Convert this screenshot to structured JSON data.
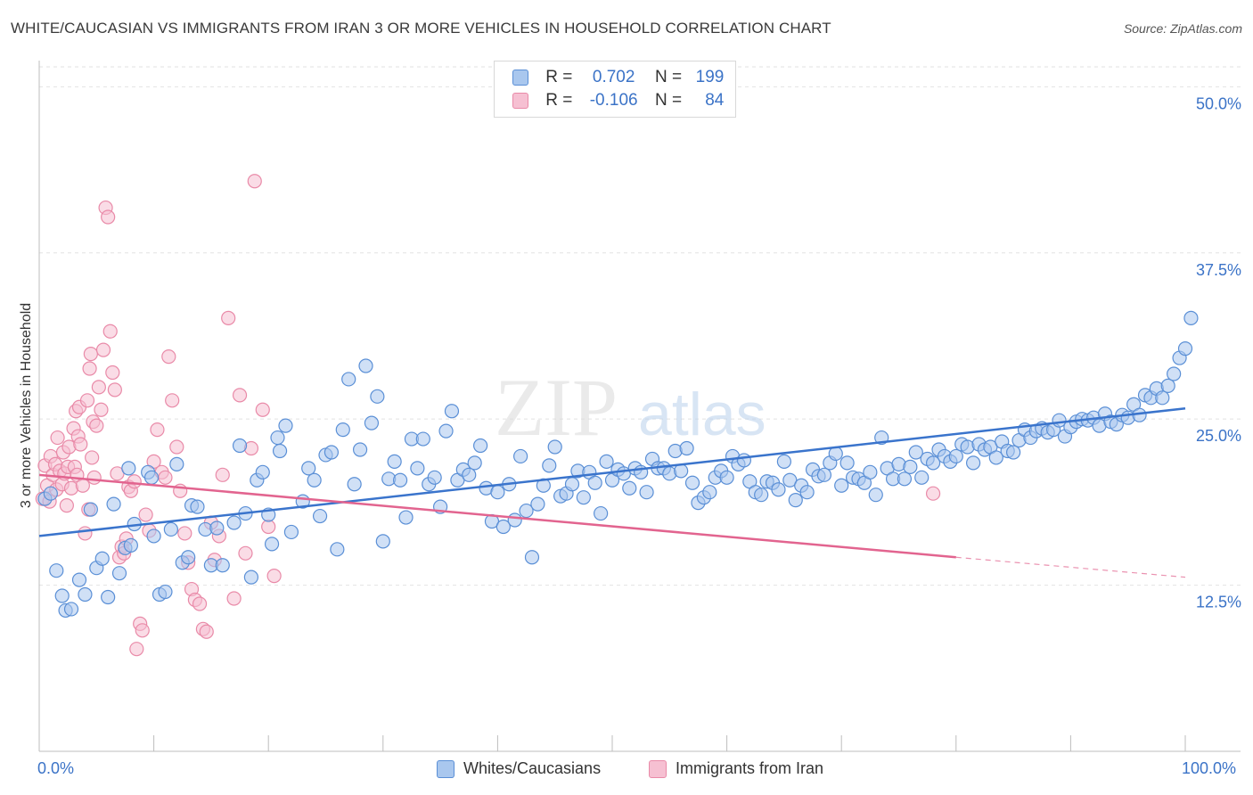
{
  "title": "WHITE/CAUCASIAN VS IMMIGRANTS FROM IRAN 3 OR MORE VEHICLES IN HOUSEHOLD CORRELATION CHART",
  "source": "Source: ZipAtlas.com",
  "watermark": {
    "zip": "ZIP",
    "atlas": "atlas"
  },
  "legend": {
    "rows": [
      {
        "r_label": "R =",
        "r_value": "0.702",
        "n_label": "N =",
        "n_value": "199"
      },
      {
        "r_label": "R =",
        "r_value": "-0.106",
        "n_label": "N =",
        "n_value": "84"
      }
    ]
  },
  "colors": {
    "blue_fill": "#a9c7ee",
    "blue_stroke": "#5a8fd6",
    "blue_line": "#3a74cc",
    "pink_fill": "#f6c0d2",
    "pink_stroke": "#e98aa8",
    "pink_line": "#e2648f",
    "tick_label": "#3b73c7"
  },
  "chart_data": {
    "type": "scatter",
    "title": "WHITE/CAUCASIAN VS IMMIGRANTS FROM IRAN 3 OR MORE VEHICLES IN HOUSEHOLD CORRELATION CHART",
    "xlabel": "",
    "ylabel": "3 or more Vehicles in Household",
    "xlim": [
      0,
      100
    ],
    "ylim": [
      0,
      51.5
    ],
    "x_tick_labels": {
      "left": "0.0%",
      "right": "100.0%"
    },
    "y_ticks": [
      12.5,
      25.0,
      37.5,
      50.0
    ],
    "y_tick_labels": [
      "12.5%",
      "25.0%",
      "37.5%",
      "50.0%"
    ],
    "grid": "horizontal dashed",
    "series": [
      {
        "name": "Whites/Caucasians",
        "r": 0.702,
        "n": 199,
        "trend": {
          "x": [
            0,
            100
          ],
          "y": [
            16.2,
            25.8
          ]
        },
        "points": [
          [
            0.5,
            19
          ],
          [
            1,
            19.4
          ],
          [
            1.5,
            13.6
          ],
          [
            2,
            11.7
          ],
          [
            2.3,
            10.6
          ],
          [
            2.8,
            10.7
          ],
          [
            3.5,
            12.9
          ],
          [
            4,
            11.8
          ],
          [
            4.5,
            18.2
          ],
          [
            5,
            13.8
          ],
          [
            5.5,
            14.5
          ],
          [
            6,
            11.6
          ],
          [
            6.5,
            18.6
          ],
          [
            7,
            13.4
          ],
          [
            7.5,
            15.3
          ],
          [
            7.8,
            21.3
          ],
          [
            8,
            15.5
          ],
          [
            8.3,
            17.1
          ],
          [
            9.5,
            21
          ],
          [
            9.8,
            20.6
          ],
          [
            10,
            16.2
          ],
          [
            10.5,
            11.8
          ],
          [
            11,
            12
          ],
          [
            11.5,
            16.7
          ],
          [
            12,
            21.6
          ],
          [
            12.5,
            14.2
          ],
          [
            13,
            14.6
          ],
          [
            13.3,
            18.5
          ],
          [
            13.8,
            18.4
          ],
          [
            14.5,
            16.7
          ],
          [
            15,
            14
          ],
          [
            15.5,
            16.8
          ],
          [
            16,
            14
          ],
          [
            17,
            17.2
          ],
          [
            17.5,
            23
          ],
          [
            18,
            17.9
          ],
          [
            18.5,
            13.1
          ],
          [
            19,
            20.4
          ],
          [
            19.5,
            21
          ],
          [
            20,
            17.8
          ],
          [
            20.3,
            15.6
          ],
          [
            20.8,
            23.6
          ],
          [
            21,
            22.6
          ],
          [
            21.5,
            24.5
          ],
          [
            22,
            16.5
          ],
          [
            23,
            18.8
          ],
          [
            23.5,
            21.3
          ],
          [
            24,
            20.4
          ],
          [
            24.5,
            17.7
          ],
          [
            25,
            22.3
          ],
          [
            25.5,
            22.5
          ],
          [
            26,
            15.2
          ],
          [
            26.5,
            24.2
          ],
          [
            27,
            28
          ],
          [
            27.5,
            20.1
          ],
          [
            28,
            22.7
          ],
          [
            28.5,
            29
          ],
          [
            29,
            24.7
          ],
          [
            29.5,
            26.7
          ],
          [
            30,
            15.8
          ],
          [
            30.5,
            20.5
          ],
          [
            31,
            21.8
          ],
          [
            31.5,
            20.4
          ],
          [
            32,
            17.6
          ],
          [
            32.5,
            23.5
          ],
          [
            33,
            21.3
          ],
          [
            33.5,
            23.5
          ],
          [
            34,
            20.1
          ],
          [
            34.5,
            20.6
          ],
          [
            35,
            18.4
          ],
          [
            35.5,
            24.1
          ],
          [
            36,
            25.6
          ],
          [
            36.5,
            20.4
          ],
          [
            37,
            21.2
          ],
          [
            37.5,
            20.8
          ],
          [
            38,
            21.7
          ],
          [
            38.5,
            23
          ],
          [
            39,
            19.8
          ],
          [
            39.5,
            17.3
          ],
          [
            40,
            19.5
          ],
          [
            40.5,
            16.9
          ],
          [
            41,
            20.1
          ],
          [
            41.5,
            17.4
          ],
          [
            42,
            22.2
          ],
          [
            42.5,
            18.1
          ],
          [
            43,
            14.6
          ],
          [
            43.5,
            18.6
          ],
          [
            44,
            20
          ],
          [
            44.5,
            21.5
          ],
          [
            45,
            22.9
          ],
          [
            45.5,
            19.2
          ],
          [
            46,
            19.4
          ],
          [
            46.5,
            20.1
          ],
          [
            47,
            21.1
          ],
          [
            47.5,
            19.1
          ],
          [
            48,
            21
          ],
          [
            48.5,
            20.2
          ],
          [
            49,
            17.9
          ],
          [
            49.5,
            21.8
          ],
          [
            50,
            20.4
          ],
          [
            50.5,
            21.2
          ],
          [
            51,
            20.9
          ],
          [
            51.5,
            19.8
          ],
          [
            52,
            21.3
          ],
          [
            52.5,
            21
          ],
          [
            53,
            19.5
          ],
          [
            53.5,
            22
          ],
          [
            54,
            21.3
          ],
          [
            54.5,
            21.3
          ],
          [
            55,
            20.9
          ],
          [
            55.5,
            22.6
          ],
          [
            56,
            21.1
          ],
          [
            56.5,
            22.8
          ],
          [
            57,
            20.2
          ],
          [
            57.5,
            18.7
          ],
          [
            58,
            19.1
          ],
          [
            58.5,
            19.5
          ],
          [
            59,
            20.6
          ],
          [
            59.5,
            21.1
          ],
          [
            60,
            20.6
          ],
          [
            60.5,
            22.2
          ],
          [
            61,
            21.6
          ],
          [
            61.5,
            21.9
          ],
          [
            62,
            20.3
          ],
          [
            62.5,
            19.5
          ],
          [
            63,
            19.3
          ],
          [
            63.5,
            20.3
          ],
          [
            64,
            20.2
          ],
          [
            64.5,
            19.7
          ],
          [
            65,
            21.8
          ],
          [
            65.5,
            20.4
          ],
          [
            66,
            18.9
          ],
          [
            66.5,
            20
          ],
          [
            67,
            19.5
          ],
          [
            67.5,
            21.2
          ],
          [
            68,
            20.7
          ],
          [
            68.5,
            20.8
          ],
          [
            69,
            21.7
          ],
          [
            69.5,
            22.4
          ],
          [
            70,
            20
          ],
          [
            70.5,
            21.7
          ],
          [
            71,
            20.6
          ],
          [
            71.5,
            20.5
          ],
          [
            72,
            20.2
          ],
          [
            72.5,
            21
          ],
          [
            73,
            19.3
          ],
          [
            73.5,
            23.6
          ],
          [
            74,
            21.3
          ],
          [
            74.5,
            20.5
          ],
          [
            75,
            21.6
          ],
          [
            75.5,
            20.5
          ],
          [
            76,
            21.4
          ],
          [
            76.5,
            22.5
          ],
          [
            77,
            20.6
          ],
          [
            77.5,
            22
          ],
          [
            78,
            21.7
          ],
          [
            78.5,
            22.7
          ],
          [
            79,
            22.2
          ],
          [
            79.5,
            21.8
          ],
          [
            80,
            22.2
          ],
          [
            80.5,
            23.1
          ],
          [
            81,
            22.9
          ],
          [
            81.5,
            21.7
          ],
          [
            82,
            23.1
          ],
          [
            82.5,
            22.7
          ],
          [
            83,
            22.9
          ],
          [
            83.5,
            22.1
          ],
          [
            84,
            23.3
          ],
          [
            84.5,
            22.6
          ],
          [
            85,
            22.5
          ],
          [
            85.5,
            23.4
          ],
          [
            86,
            24.2
          ],
          [
            86.5,
            23.6
          ],
          [
            87,
            24.1
          ],
          [
            87.5,
            24.3
          ],
          [
            88,
            24
          ],
          [
            88.5,
            24.2
          ],
          [
            89,
            24.9
          ],
          [
            89.5,
            23.7
          ],
          [
            90,
            24.4
          ],
          [
            90.5,
            24.8
          ],
          [
            91,
            25
          ],
          [
            91.5,
            24.9
          ],
          [
            92,
            25.1
          ],
          [
            92.5,
            24.5
          ],
          [
            93,
            25.4
          ],
          [
            93.5,
            24.8
          ],
          [
            94,
            24.6
          ],
          [
            94.5,
            25.3
          ],
          [
            95,
            25.1
          ],
          [
            95.5,
            26.1
          ],
          [
            96,
            25.3
          ],
          [
            96.5,
            26.8
          ],
          [
            97,
            26.6
          ],
          [
            97.5,
            27.3
          ],
          [
            98,
            26.6
          ],
          [
            98.5,
            27.5
          ],
          [
            99,
            28.4
          ],
          [
            99.5,
            29.6
          ],
          [
            100,
            30.3
          ],
          [
            100.5,
            32.6
          ]
        ]
      },
      {
        "name": "Immigrants from Iran",
        "r": -0.106,
        "n": 84,
        "trend": {
          "x": [
            0,
            80
          ],
          "y": [
            20.8,
            14.6
          ]
        },
        "trend_dashed_extension": {
          "x": [
            80,
            100
          ],
          "y": [
            14.6,
            13.1
          ]
        },
        "points": [
          [
            0.3,
            19
          ],
          [
            0.5,
            21.5
          ],
          [
            0.7,
            20
          ],
          [
            0.9,
            18.8
          ],
          [
            1,
            22.2
          ],
          [
            1.2,
            20.8
          ],
          [
            1.4,
            21.6
          ],
          [
            1.5,
            19.7
          ],
          [
            1.6,
            23.6
          ],
          [
            1.8,
            21.1
          ],
          [
            2,
            20.1
          ],
          [
            2.1,
            22.5
          ],
          [
            2.2,
            20.9
          ],
          [
            2.4,
            18.5
          ],
          [
            2.5,
            21.4
          ],
          [
            2.6,
            22.9
          ],
          [
            2.8,
            19.8
          ],
          [
            3,
            24.3
          ],
          [
            3.1,
            21.4
          ],
          [
            3.2,
            25.6
          ],
          [
            3.3,
            20.8
          ],
          [
            3.4,
            23.7
          ],
          [
            3.5,
            25.9
          ],
          [
            3.6,
            23.1
          ],
          [
            3.8,
            20
          ],
          [
            4,
            16.4
          ],
          [
            4.2,
            26.4
          ],
          [
            4.3,
            18.2
          ],
          [
            4.4,
            28.8
          ],
          [
            4.5,
            29.9
          ],
          [
            4.6,
            22.1
          ],
          [
            4.7,
            24.8
          ],
          [
            4.8,
            20.6
          ],
          [
            5,
            24.5
          ],
          [
            5.2,
            27.4
          ],
          [
            5.4,
            25.7
          ],
          [
            5.6,
            30.2
          ],
          [
            5.8,
            40.9
          ],
          [
            6,
            40.2
          ],
          [
            6.2,
            31.6
          ],
          [
            6.4,
            28.5
          ],
          [
            6.6,
            27.2
          ],
          [
            6.8,
            20.9
          ],
          [
            7,
            14.6
          ],
          [
            7.2,
            15.4
          ],
          [
            7.4,
            14.9
          ],
          [
            7.6,
            16
          ],
          [
            7.8,
            19.9
          ],
          [
            8,
            19.6
          ],
          [
            8.3,
            20.3
          ],
          [
            8.5,
            7.7
          ],
          [
            8.8,
            9.6
          ],
          [
            9,
            9.1
          ],
          [
            9.3,
            17.8
          ],
          [
            9.6,
            16.6
          ],
          [
            10,
            21.8
          ],
          [
            10.3,
            24.2
          ],
          [
            10.7,
            21
          ],
          [
            11,
            20.6
          ],
          [
            11.3,
            29.7
          ],
          [
            11.6,
            26.4
          ],
          [
            12,
            22.9
          ],
          [
            12.3,
            19.6
          ],
          [
            12.7,
            16.4
          ],
          [
            13,
            14.2
          ],
          [
            13.3,
            12.2
          ],
          [
            13.6,
            11.4
          ],
          [
            14,
            11.1
          ],
          [
            14.3,
            9.2
          ],
          [
            14.6,
            9
          ],
          [
            15,
            17.2
          ],
          [
            15.3,
            14.4
          ],
          [
            15.7,
            16.2
          ],
          [
            16,
            20.8
          ],
          [
            16.5,
            32.6
          ],
          [
            17,
            11.5
          ],
          [
            17.5,
            26.8
          ],
          [
            18,
            14.9
          ],
          [
            18.5,
            22.8
          ],
          [
            18.8,
            42.9
          ],
          [
            19.5,
            25.7
          ],
          [
            20,
            16.9
          ],
          [
            20.5,
            13.2
          ],
          [
            78,
            19.4
          ]
        ]
      }
    ]
  },
  "bottom_legend": {
    "series_1": "Whites/Caucasians",
    "series_2": "Immigrants from Iran"
  }
}
